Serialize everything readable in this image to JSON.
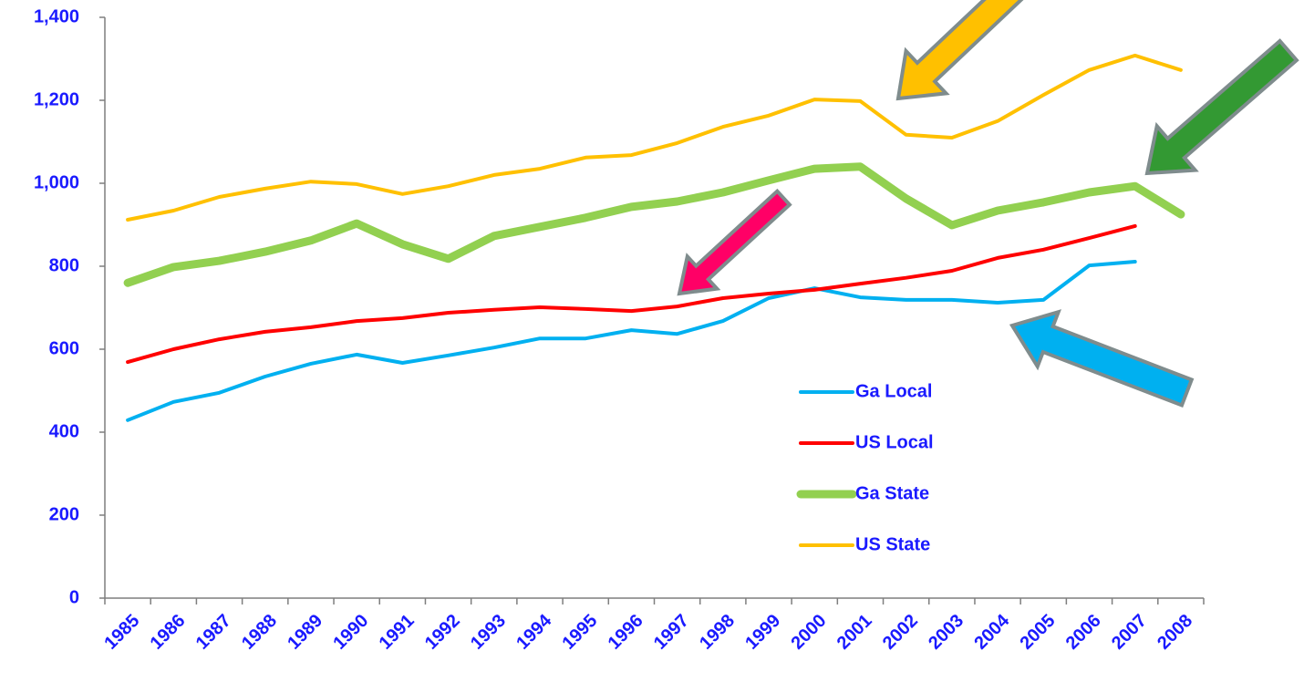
{
  "chart_data": {
    "type": "line",
    "categories": [
      "1985",
      "1986",
      "1987",
      "1988",
      "1989",
      "1990",
      "1991",
      "1992",
      "1993",
      "1994",
      "1995",
      "1996",
      "1997",
      "1998",
      "1999",
      "2000",
      "2001",
      "2002",
      "2003",
      "2004",
      "2005",
      "2006",
      "2007",
      "2008"
    ],
    "series": [
      {
        "name": "Ga Local",
        "color": "#00b0f0",
        "width": 4,
        "values": [
          429,
          473,
          495,
          534,
          565,
          587,
          567,
          585,
          604,
          626,
          626,
          646,
          637,
          668,
          723,
          747,
          725,
          719,
          719,
          712,
          719,
          802,
          811,
          null
        ]
      },
      {
        "name": "US Local",
        "color": "#ff0000",
        "width": 4,
        "values": [
          569,
          600,
          624,
          642,
          653,
          668,
          675,
          688,
          695,
          701,
          697,
          692,
          703,
          723,
          734,
          743,
          758,
          772,
          789,
          820,
          840,
          868,
          897,
          null
        ]
      },
      {
        "name": "Ga State",
        "color": "#92d050",
        "width": 9,
        "values": [
          760,
          798,
          813,
          835,
          862,
          903,
          853,
          818,
          873,
          895,
          917,
          943,
          956,
          978,
          1007,
          1035,
          1040,
          963,
          899,
          934,
          954,
          978,
          993,
          925
        ]
      },
      {
        "name": "US State",
        "color": "#ffc000",
        "width": 4,
        "values": [
          912,
          934,
          967,
          987,
          1004,
          998,
          974,
          993,
          1020,
          1035,
          1062,
          1068,
          1097,
          1136,
          1163,
          1202,
          1198,
          1117,
          1110,
          1150,
          1213,
          1273,
          1308,
          1273
        ]
      }
    ],
    "ylim": [
      0,
      1400
    ],
    "yticks": [
      0,
      200,
      400,
      600,
      800,
      {
        "value": 1000,
        "label": "1,000"
      },
      {
        "value": 1200,
        "label": "1,200"
      },
      {
        "value": 1400,
        "label": "1,400"
      }
    ]
  }
}
